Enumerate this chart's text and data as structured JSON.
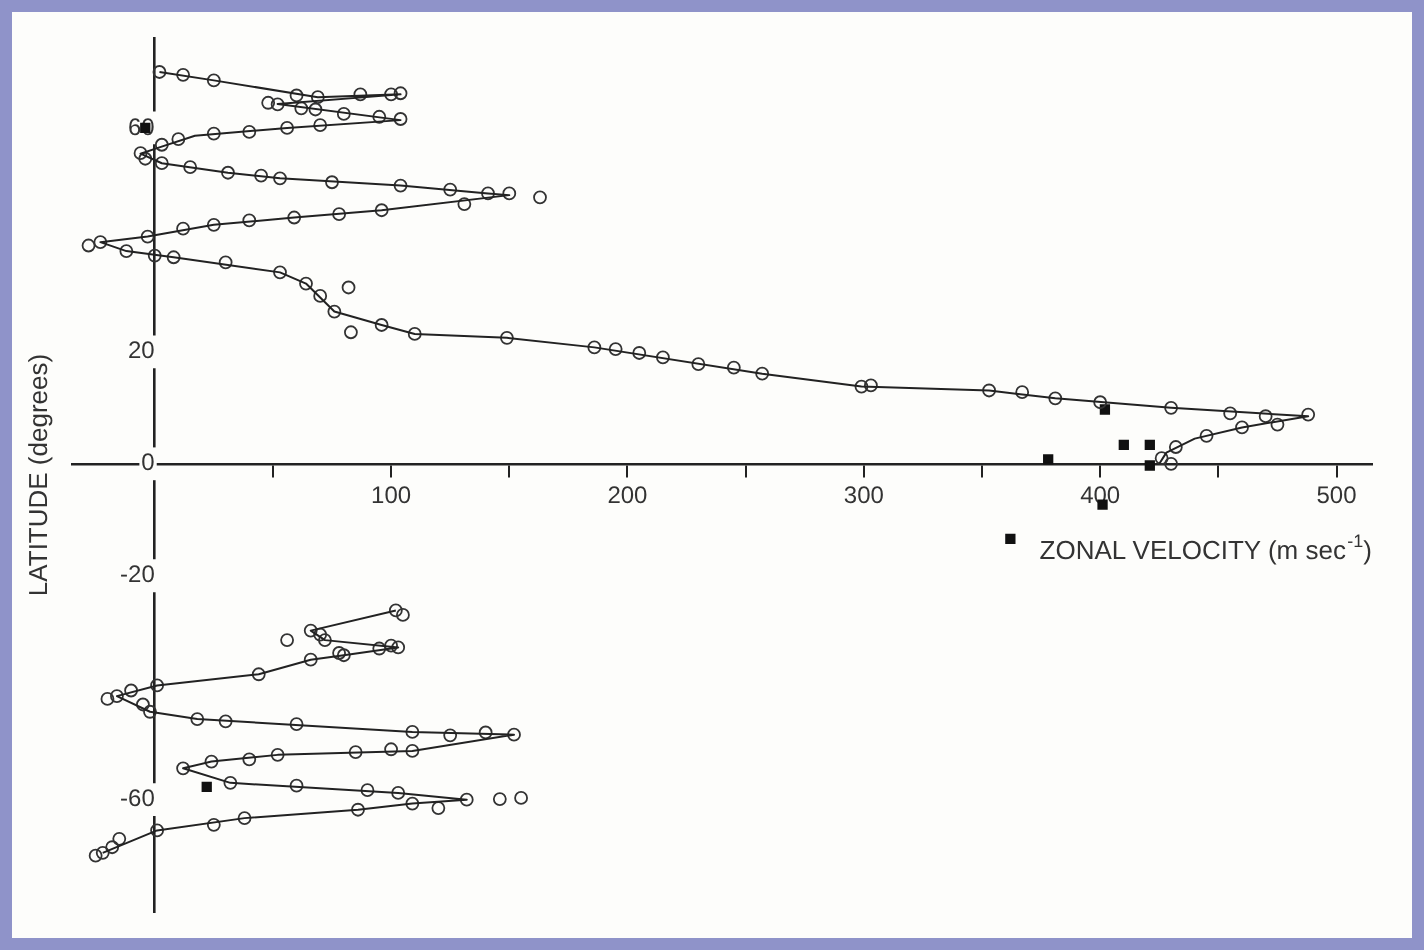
{
  "chart_data": {
    "type": "scatter",
    "xlabel": "ZONAL VELOCITY (m sec$^{-1}$)",
    "ylabel": "LATITUDE (degrees)",
    "xlim": [
      -35,
      515
    ],
    "xticks": [
      {
        "value": 50,
        "label": null
      },
      100,
      {
        "value": 150,
        "label": null
      },
      200,
      {
        "value": 250,
        "label": null
      },
      300,
      {
        "value": 350,
        "label": null
      },
      400,
      {
        "value": 450,
        "label": null
      },
      500
    ],
    "ylim": [
      -80,
      76
    ],
    "yticks": [
      -60,
      -20,
      0,
      20,
      60
    ],
    "series": [
      {
        "type": "line",
        "color": "#222222",
        "marker": "none",
        "x": [
          2,
          25,
          69,
          104,
          52,
          104,
          56,
          17,
          1,
          -6,
          3,
          31,
          53,
          104,
          141,
          150,
          96,
          59,
          25,
          -3,
          -23,
          -12,
          8,
          53,
          64,
          76,
          96,
          110,
          149,
          186,
          257,
          299,
          353,
          381,
          430,
          488,
          460,
          440,
          428,
          425
        ],
        "values": [
          70,
          68.5,
          65.5,
          66,
          64.3,
          61.4,
          60,
          58.6,
          56.4,
          55.4,
          53.7,
          52,
          51,
          49.7,
          48.3,
          48,
          45.3,
          44,
          42.7,
          40.6,
          39.6,
          38,
          36.9,
          34.2,
          32.2,
          27.2,
          24.8,
          23.2,
          22.5,
          20.8,
          16.1,
          13.8,
          13.1,
          11.7,
          10,
          8.5,
          6.5,
          4.5,
          2,
          0
        ]
      },
      {
        "type": "line",
        "color": "#222222",
        "marker": "none",
        "x": [
          102,
          66,
          72,
          103,
          80,
          66,
          44,
          1,
          -16,
          -2,
          18,
          109,
          152,
          109,
          52,
          24,
          12,
          32,
          103,
          132,
          109,
          86,
          38,
          1,
          -22
        ],
        "values": [
          -26.2,
          -29.8,
          -31.5,
          -32.8,
          -34.2,
          -35,
          -37.6,
          -39.6,
          -41.5,
          -44.3,
          -45.6,
          -47.9,
          -48.4,
          -51.3,
          -52,
          -53.2,
          -54.4,
          -57,
          -58.8,
          -60,
          -60.7,
          -61.8,
          -63.3,
          -65.5,
          -69.5
        ]
      },
      {
        "color": "#333333",
        "marker": "circle",
        "x": [
          2,
          12,
          25,
          60,
          69,
          87,
          100,
          104,
          48,
          52,
          62,
          68,
          80,
          95,
          104,
          70,
          56,
          40,
          25,
          10,
          3,
          -6,
          -4,
          3,
          15,
          31,
          45,
          53,
          75,
          104,
          125,
          141,
          150,
          163,
          131,
          96,
          78,
          59,
          40,
          25,
          12,
          -3,
          -23,
          -28,
          -12,
          0,
          8,
          30,
          53,
          64,
          70,
          82,
          76,
          83,
          96,
          110,
          149,
          186,
          195,
          205,
          215,
          230,
          245,
          257,
          299,
          303,
          353,
          367,
          381,
          400,
          430,
          455,
          470,
          488,
          475,
          460,
          445,
          432,
          426,
          430,
          102,
          66,
          72,
          103,
          80,
          66,
          44,
          1,
          -16,
          -2,
          18,
          109,
          152,
          109,
          52,
          24,
          12,
          32,
          103,
          132,
          109,
          86,
          38,
          1,
          -22,
          105,
          56,
          70,
          95,
          100,
          78,
          -10,
          -20,
          -5,
          30,
          60,
          125,
          140,
          100,
          85,
          40,
          60,
          90,
          155,
          146,
          120,
          25,
          -15,
          -25,
          -18
        ],
        "values": [
          70,
          69.5,
          68.5,
          65.8,
          65.5,
          66,
          66,
          66.2,
          64.5,
          64.2,
          63.5,
          63.3,
          62.5,
          62,
          61.6,
          60.5,
          60,
          59.3,
          59,
          58,
          57,
          55.5,
          54.5,
          53.7,
          53,
          52,
          51.5,
          51,
          50.3,
          49.7,
          49,
          48.3,
          48.3,
          47.6,
          46.4,
          45.3,
          44.6,
          44,
          43.5,
          42.7,
          42,
          40.6,
          39.6,
          39,
          38,
          37.2,
          36.9,
          36,
          34.2,
          32.2,
          30,
          31.5,
          27.2,
          23.5,
          24.8,
          23.2,
          22.5,
          20.8,
          20.5,
          19.8,
          19,
          17.8,
          17.2,
          16.1,
          13.8,
          14,
          13.1,
          12.8,
          11.7,
          11,
          10,
          9,
          8.5,
          8.8,
          7,
          6.5,
          5,
          3,
          1,
          0,
          -26.2,
          -29.8,
          -31.5,
          -32.8,
          -34.2,
          -35,
          -37.6,
          -39.6,
          -41.5,
          -44.3,
          -45.6,
          -47.9,
          -48.4,
          -51.3,
          -52,
          -53.2,
          -54.4,
          -57,
          -58.8,
          -60,
          -60.7,
          -61.8,
          -63.3,
          -65.5,
          -69.5,
          -27,
          -31.5,
          -30.5,
          -33,
          -32.5,
          -33.8,
          -40.5,
          -42,
          -43,
          -46,
          -46.5,
          -48.5,
          -48,
          -51,
          -51.5,
          -52.8,
          -57.5,
          -58.3,
          -59.7,
          -59.9,
          -61.5,
          -64.5,
          -67,
          -70,
          -68.5
        ]
      },
      {
        "color": "#111111",
        "marker": "square",
        "x": [
          -4,
          402,
          410,
          421,
          421,
          378,
          401,
          362,
          22
        ],
        "values": [
          60,
          9.7,
          3.4,
          3.4,
          -0.3,
          0.8,
          -7.3,
          -13.4,
          -57.7
        ]
      }
    ]
  }
}
